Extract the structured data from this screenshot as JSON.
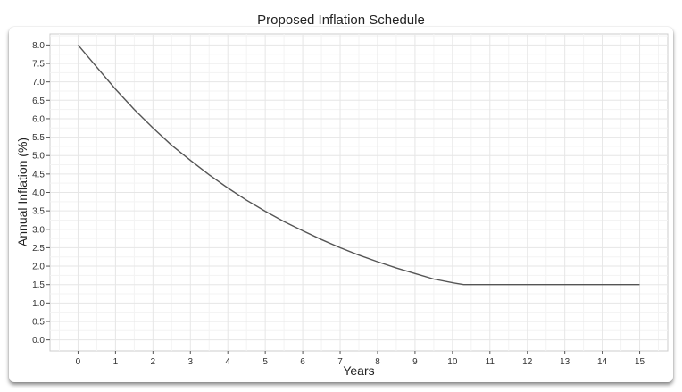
{
  "chart_data": {
    "type": "line",
    "title": "Proposed Inflation Schedule",
    "xlabel": "Years",
    "ylabel": "Annual Inflation (%)",
    "xlim": [
      -0.75,
      15.75
    ],
    "ylim": [
      -0.3,
      8.3
    ],
    "x_ticks": [
      "0",
      "1",
      "2",
      "3",
      "4",
      "5",
      "6",
      "7",
      "8",
      "9",
      "10",
      "11",
      "12",
      "13",
      "14",
      "15"
    ],
    "y_ticks": [
      "0.0",
      "0.5",
      "1.0",
      "1.5",
      "2.0",
      "2.5",
      "3.0",
      "3.5",
      "4.0",
      "4.5",
      "5.0",
      "5.5",
      "6.0",
      "6.5",
      "7.0",
      "7.5",
      "8.0"
    ],
    "grid": true,
    "series": [
      {
        "line_color": "#555555",
        "x": [
          0,
          0.5,
          1,
          1.5,
          2,
          2.5,
          3,
          3.5,
          4,
          4.5,
          5,
          5.5,
          6,
          6.5,
          7,
          7.5,
          8,
          8.5,
          9,
          9.5,
          10,
          10.3,
          11,
          12,
          13,
          14,
          15
        ],
        "y": [
          8.0,
          7.4,
          6.8,
          6.25,
          5.75,
          5.28,
          4.87,
          4.48,
          4.12,
          3.79,
          3.49,
          3.21,
          2.96,
          2.72,
          2.5,
          2.3,
          2.12,
          1.95,
          1.8,
          1.65,
          1.55,
          1.5,
          1.5,
          1.5,
          1.5,
          1.5,
          1.5
        ]
      }
    ]
  }
}
